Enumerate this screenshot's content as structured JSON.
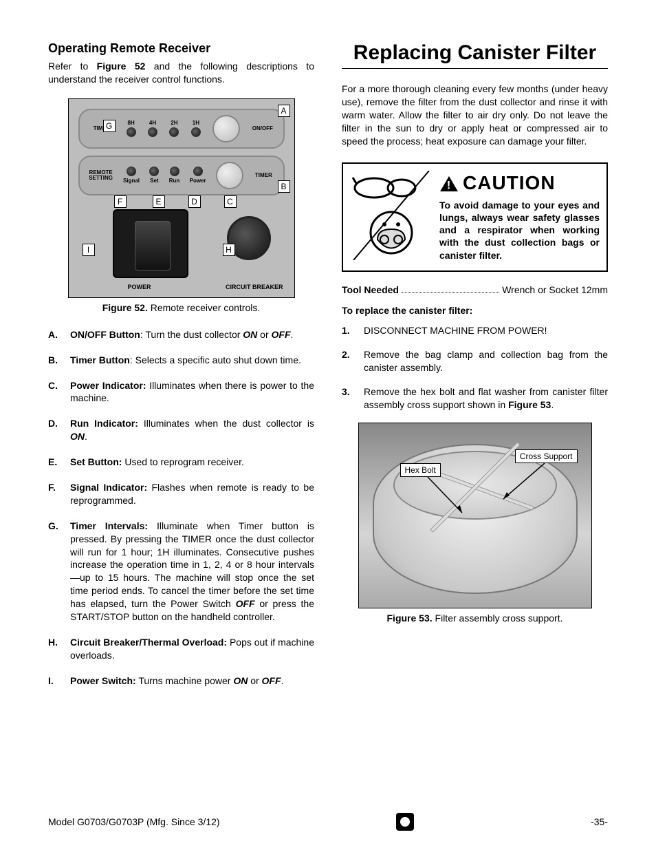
{
  "left": {
    "subheading": "Operating Remote Receiver",
    "intro_prefix": "Refer to ",
    "intro_fig": "Figure 52",
    "intro_suffix": " and the following descriptions to understand the receiver control functions.",
    "fig52": {
      "caption_label": "Figure 52.",
      "caption_text": " Remote receiver controls.",
      "timer_label": "TIMER",
      "timer_hours": [
        "8H",
        "4H",
        "2H",
        "1H"
      ],
      "onoff_btn": "ON/OFF",
      "remote_label": "REMOTE SETTING",
      "remote_leds": [
        "Signal",
        "Set",
        "Run",
        "Power"
      ],
      "timer_btn": "TIMER",
      "power_label": "POWER",
      "cb_label": "CIRCUIT BREAKER",
      "callouts": {
        "A": "A",
        "B": "B",
        "C": "C",
        "D": "D",
        "E": "E",
        "F": "F",
        "G": "G",
        "H": "H",
        "I": "I"
      }
    },
    "definitions": [
      {
        "letter": "A.",
        "term": "ON/OFF Button",
        "sep": ": ",
        "body_pre": "Turn the dust collector ",
        "em1": "ON",
        "mid": " or ",
        "em2": "OFF",
        "post": "."
      },
      {
        "letter": "B.",
        "term": "Timer Button",
        "sep": ": ",
        "body_pre": "Selects a specific auto shut down time.",
        "em1": "",
        "mid": "",
        "em2": "",
        "post": ""
      },
      {
        "letter": "C.",
        "term": "Power Indicator:",
        "sep": " ",
        "body_pre": "Illuminates when there is power to the machine.",
        "em1": "",
        "mid": "",
        "em2": "",
        "post": ""
      },
      {
        "letter": "D.",
        "term": "Run Indicator:",
        "sep": " ",
        "body_pre": "Illuminates when the dust collector is ",
        "em1": "ON",
        "mid": "",
        "em2": "",
        "post": "."
      },
      {
        "letter": "E.",
        "term": "Set Button:",
        "sep": " ",
        "body_pre": "Used to reprogram receiver.",
        "em1": "",
        "mid": "",
        "em2": "",
        "post": ""
      },
      {
        "letter": "F.",
        "term": "Signal Indicator:",
        "sep": " ",
        "body_pre": "Flashes when remote is ready to be reprogrammed.",
        "em1": "",
        "mid": "",
        "em2": "",
        "post": ""
      },
      {
        "letter": "G.",
        "term": "Timer Intervals:",
        "sep": " ",
        "body_pre": "Illuminate when Timer button is pressed. By pressing the TIMER once the dust collector will run for 1 hour; 1H illuminates. Consecutive pushes increase the operation time in 1, 2, 4 or 8 hour intervals—up to 15 hours. The machine will stop once the set time period ends. To cancel the timer before the set time has elapsed, turn the Power Switch ",
        "em1": "OFF",
        "mid": " or press the START/STOP button on the handheld controller.",
        "em2": "",
        "post": ""
      },
      {
        "letter": "H.",
        "term": "Circuit Breaker/Thermal Overload:",
        "sep": " ",
        "body_pre": "Pops out if machine overloads.",
        "em1": "",
        "mid": "",
        "em2": "",
        "post": ""
      },
      {
        "letter": "I.",
        "term": "Power Switch:",
        "sep": " ",
        "body_pre": "Turns machine power ",
        "em1": "ON",
        "mid": " or ",
        "em2": "OFF",
        "post": "."
      }
    ]
  },
  "right": {
    "heading": "Replacing Canister Filter",
    "intro": "For a more thorough cleaning every few months (under heavy use), remove the filter from the dust collector and rinse it with warm water. Allow the filter to air dry only. Do not leave the filter in the sun to dry or apply heat or compressed air to speed the process; heat exposure can damage your filter.",
    "caution": {
      "header": "CAUTION",
      "body": "To avoid damage to your eyes and lungs, always wear safety glasses and a respirator when working with the dust collection bags or canister filter."
    },
    "tool_label": "Tool Needed",
    "tool_value": "Wrench or Socket 12mm",
    "steps_heading": "To replace the canister filter:",
    "steps": [
      {
        "num": "1.",
        "body": "DISCONNECT MACHINE FROM POWER!"
      },
      {
        "num": "2.",
        "body": "Remove the bag clamp and collection bag from the canister assembly."
      },
      {
        "num": "3.",
        "body_pre": "Remove the hex bolt and flat washer from canister filter assembly cross support shown in ",
        "fig": "Figure 53",
        "post": "."
      }
    ],
    "fig53": {
      "hex_label": "Hex Bolt",
      "cross_label": "Cross Support",
      "caption_label": "Figure 53.",
      "caption_text": " Filter assembly cross support."
    }
  },
  "footer": {
    "model": "Model G0703/G0703P (Mfg. Since 3/12)",
    "page": "-35-"
  },
  "colors": {
    "text": "#000000",
    "panel_bg": "#bdbdbd",
    "border": "#000000"
  }
}
